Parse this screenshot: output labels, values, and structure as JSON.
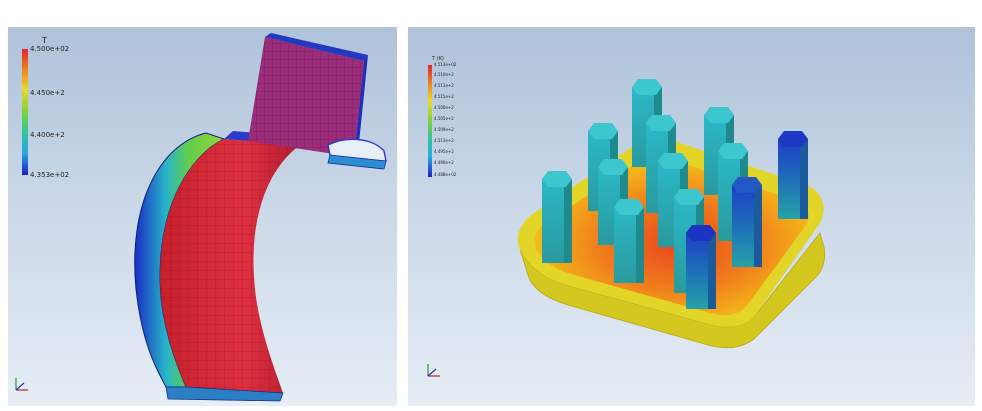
{
  "left_view": {
    "legend": {
      "title": "T",
      "labels": [
        "4.500e+02",
        "4.450e+2",
        "4.400e+2",
        "4.353e+02"
      ]
    }
  },
  "right_view": {
    "legend": {
      "title": "T (K)",
      "labels": [
        "4.513e+02",
        "4.510e+2",
        "4.511e+2",
        "4.515e+2",
        "4.500e+2",
        "4.505e+2",
        "4.509e+2",
        "4.513e+2",
        "4.495e+2",
        "4.490e+2",
        "4.488e+02"
      ]
    }
  },
  "colors": {
    "background_top": "#aec2da",
    "background_bottom": "#e6edf5",
    "hot": "#e2262b",
    "cold": "#1a22c8"
  }
}
